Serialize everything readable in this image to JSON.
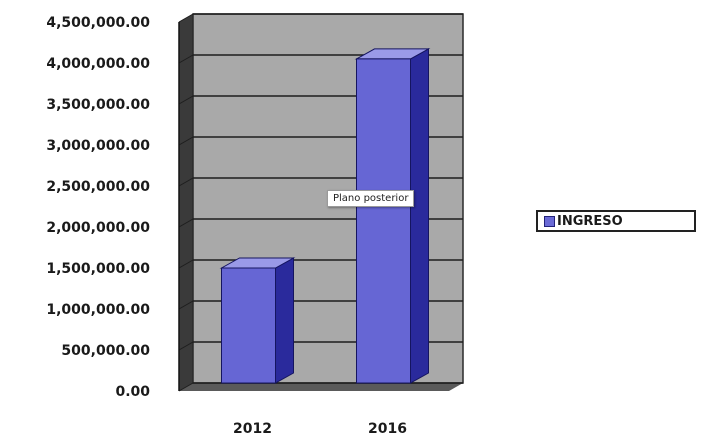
{
  "chart_data": {
    "type": "bar",
    "categories": [
      "2012",
      "2016"
    ],
    "series": [
      {
        "name": "INGRESO",
        "values": [
          1500000,
          4050000
        ]
      }
    ],
    "ylim": [
      0,
      4500000
    ],
    "y_ticks": [
      "0.00",
      "500,000.00",
      "1,000,000.00",
      "1,500,000.00",
      "2,000,000.00",
      "2,500,000.00",
      "3,000,000.00",
      "3,500,000.00",
      "4,000,000.00",
      "4,500,000.00"
    ],
    "grid": true,
    "legend_position": "right",
    "three_d": true,
    "colors": {
      "bar_front": "#6666d4",
      "bar_top": "#9a9ae8",
      "bar_side": "#2a2a9c",
      "bar_outline": "#151560",
      "back_wall": "#a9a9a9",
      "side_wall": "#3a3a3a",
      "floor": "#5a5a5a"
    }
  },
  "tooltip": {
    "text": "Plano posterior"
  }
}
